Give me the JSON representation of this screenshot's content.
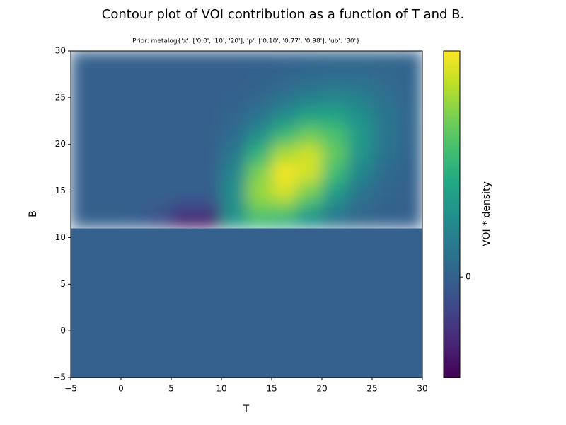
{
  "chart_data": {
    "type": "heatmap",
    "title": "Contour plot of VOI contribution as a function of T and B.",
    "subtitle": "Prior: metalog{'x': ['0.0', '10', '20'], 'p': ['0.10', '0.77', '0.98'], 'ub': '30'}",
    "xlabel": "T",
    "ylabel": "B",
    "colorbar_label": "VOI * density",
    "colormap": "viridis",
    "xlim": [
      -5,
      30
    ],
    "ylim": [
      -5,
      30
    ],
    "xticks": [
      {
        "value": -5,
        "label": "−5"
      },
      0,
      5,
      10,
      15,
      20,
      25,
      30
    ],
    "yticks": [
      {
        "value": -5,
        "label": "−5"
      },
      0,
      5,
      10,
      15,
      20,
      25,
      30
    ],
    "zlim": [
      -1,
      2.25
    ],
    "colorbar_ticks": [
      0
    ],
    "x_edges": [
      -5,
      -2.5,
      0,
      2.5,
      5,
      7.5,
      10,
      12.5,
      15,
      17.5,
      20,
      22.5,
      25,
      27.5,
      30
    ],
    "y_edges": [
      -5,
      11,
      12.5,
      14,
      16,
      18,
      20,
      22,
      24,
      26,
      28,
      30
    ],
    "z": [
      [
        0,
        0,
        0,
        0,
        0,
        0,
        0,
        0,
        0,
        0,
        0,
        0,
        0,
        0
      ],
      [
        0,
        0,
        -0.02,
        -0.21,
        -0.77,
        -0.77,
        0.7,
        1.16,
        1.02,
        0.6,
        0.24,
        0.06,
        0.01,
        0
      ],
      [
        0,
        0,
        -0.01,
        -0.09,
        -0.31,
        -0.31,
        0.6,
        1.52,
        1.53,
        1.02,
        0.45,
        0.13,
        0.03,
        0
      ],
      [
        0,
        0,
        0,
        -0.01,
        -0.04,
        -0.04,
        0.6,
        1.74,
        2.04,
        1.58,
        0.81,
        0.28,
        0.06,
        0.01
      ],
      [
        0,
        0,
        0,
        0,
        0,
        0,
        0.5,
        1.59,
        2.21,
        2.03,
        1.24,
        0.5,
        0.14,
        0.02
      ],
      [
        0,
        0,
        0,
        0,
        0,
        0,
        0.3,
        1.12,
        1.84,
        2.02,
        1.46,
        0.7,
        0.23,
        0.05
      ],
      [
        0,
        0,
        0,
        0,
        0,
        0,
        0.15,
        0.61,
        1.18,
        1.53,
        1.32,
        0.76,
        0.29,
        0.07
      ],
      [
        0,
        0,
        0,
        0,
        0,
        0,
        0.07,
        0.25,
        0.58,
        0.9,
        0.92,
        0.63,
        0.28,
        0.08
      ],
      [
        0,
        0,
        0,
        0,
        0,
        0,
        0.02,
        0.08,
        0.22,
        0.4,
        0.49,
        0.4,
        0.21,
        0.07
      ],
      [
        0,
        0,
        0,
        0,
        0,
        0,
        0,
        0.02,
        0.06,
        0.14,
        0.2,
        0.19,
        0.12,
        0.05
      ],
      [
        0,
        0,
        0,
        0,
        0,
        0,
        0,
        0,
        0.01,
        0.04,
        0.06,
        0.07,
        0.05,
        0.03
      ]
    ]
  }
}
